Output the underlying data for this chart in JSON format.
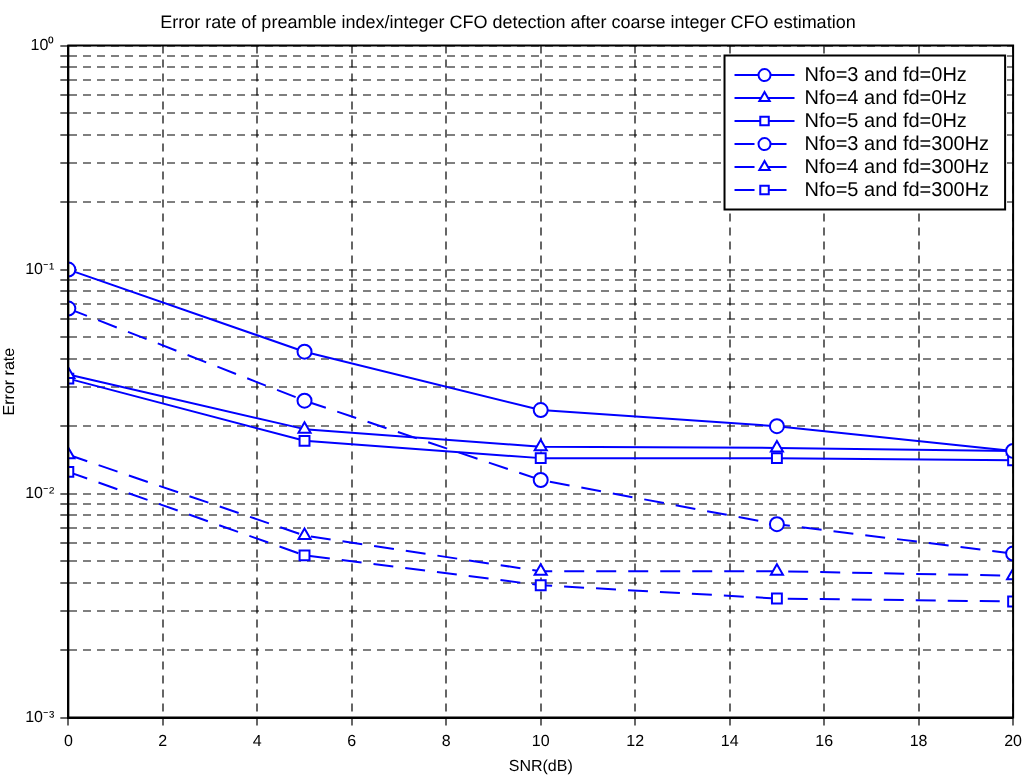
{
  "chart_data": {
    "type": "line",
    "title": "Error rate of preamble index/integer CFO detection after coarse integer CFO estimation",
    "xlabel": "SNR(dB)",
    "ylabel": "Error rate",
    "log": "y",
    "grid": true,
    "legend": "top right",
    "x": [
      0,
      5,
      10,
      15,
      20
    ],
    "xlim": [
      0,
      20
    ],
    "xticks": [
      0,
      2,
      4,
      6,
      8,
      10,
      12,
      14,
      16,
      18,
      20
    ],
    "ylim": [
      0.001,
      1
    ],
    "yticks": [
      {
        "value": 0.001,
        "label": "10⁻³"
      },
      {
        "value": 0.002,
        "label": null
      },
      {
        "value": 0.003,
        "label": null
      },
      {
        "value": 0.004,
        "label": null
      },
      {
        "value": 0.005,
        "label": null
      },
      {
        "value": 0.006,
        "label": null
      },
      {
        "value": 0.007,
        "label": null
      },
      {
        "value": 0.008,
        "label": null
      },
      {
        "value": 0.009,
        "label": null
      },
      {
        "value": 0.01,
        "label": "10⁻²"
      },
      {
        "value": 0.02,
        "label": null
      },
      {
        "value": 0.03,
        "label": null
      },
      {
        "value": 0.04,
        "label": null
      },
      {
        "value": 0.05,
        "label": null
      },
      {
        "value": 0.06,
        "label": null
      },
      {
        "value": 0.07,
        "label": null
      },
      {
        "value": 0.08,
        "label": null
      },
      {
        "value": 0.09,
        "label": null
      },
      {
        "value": 0.1,
        "label": "10⁻¹"
      },
      {
        "value": 0.2,
        "label": null
      },
      {
        "value": 0.3,
        "label": null
      },
      {
        "value": 0.4,
        "label": null
      },
      {
        "value": 0.5,
        "label": null
      },
      {
        "value": 0.6,
        "label": null
      },
      {
        "value": 0.7,
        "label": null
      },
      {
        "value": 0.8,
        "label": null
      },
      {
        "value": 0.9,
        "label": null
      },
      {
        "value": 1,
        "label": "10⁰"
      }
    ],
    "series": [
      {
        "name": "Nfo=3 and fd=0Hz",
        "color": "#0000ff",
        "marker": "circle",
        "line_style": "solid",
        "values": [
          0.1,
          0.043,
          0.0236,
          0.02,
          0.0155
        ]
      },
      {
        "name": "Nfo=4 and fd=0Hz",
        "color": "#0000ff",
        "marker": "triangle",
        "line_style": "solid",
        "values": [
          0.034,
          0.0194,
          0.0162,
          0.016,
          0.0155
        ]
      },
      {
        "name": "Nfo=5 and fd=0Hz",
        "color": "#0000ff",
        "marker": "square",
        "line_style": "solid",
        "values": [
          0.0326,
          0.0172,
          0.0144,
          0.0144,
          0.0141
        ]
      },
      {
        "name": "Nfo=3 and fd=300Hz",
        "color": "#0000ff",
        "marker": "circle",
        "line_style": "dashed",
        "values": [
          0.067,
          0.026,
          0.0115,
          0.0073,
          0.0054
        ]
      },
      {
        "name": "Nfo=4 and fd=300Hz",
        "color": "#0000ff",
        "marker": "triangle",
        "line_style": "dashed",
        "values": [
          0.0149,
          0.0065,
          0.0045,
          0.0045,
          0.0043
        ]
      },
      {
        "name": "Nfo=5 and fd=300Hz",
        "color": "#0000ff",
        "marker": "square",
        "line_style": "dashed",
        "values": [
          0.0125,
          0.0053,
          0.0039,
          0.0034,
          0.0033
        ]
      }
    ]
  }
}
